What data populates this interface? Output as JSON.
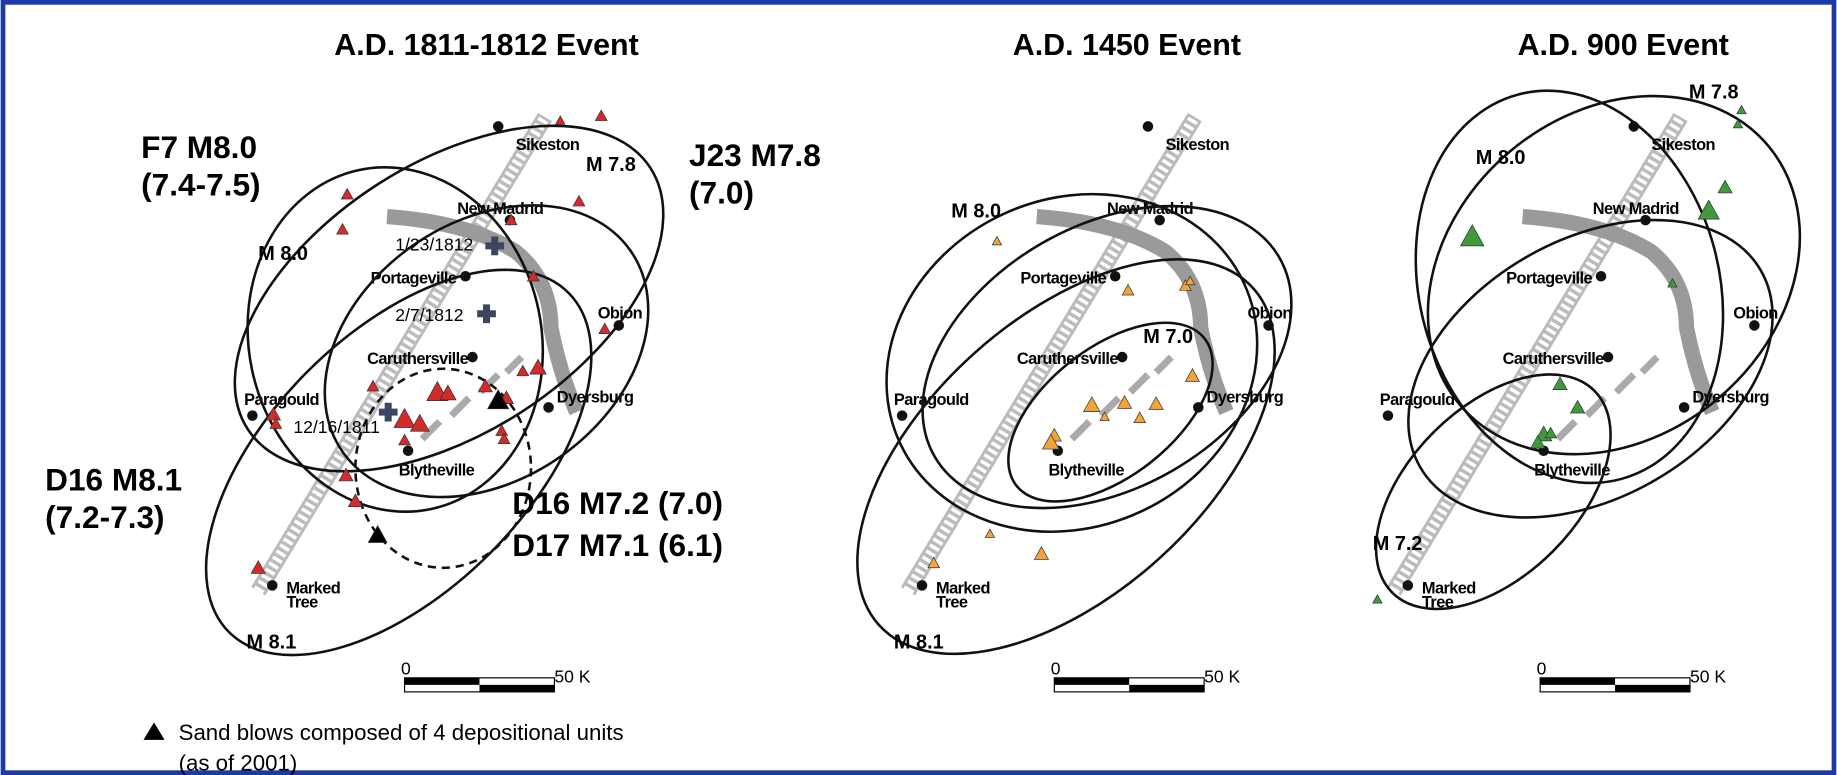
{
  "panels": [
    {
      "title": "A.D. 1811-1812 Event",
      "towns": [
        "Sikeston",
        "New Madrid",
        "Portageville",
        "Obion",
        "Caruthersville",
        "Paragould",
        "Dyersburg",
        "Blytheville"
      ],
      "marked_tree": [
        "Marked",
        "Tree"
      ],
      "magnitudes": [
        "M 7.8",
        "M 8.0",
        "M 8.1"
      ],
      "events": [
        "F7 M8.0",
        "(7.4-7.5)",
        "J23 M7.8",
        "(7.0)",
        "D16 M8.1",
        "(7.2-7.3)",
        "D16 M7.2 (7.0)",
        "D17 M7.1 (6.1)"
      ],
      "dates": [
        "1/23/1812",
        "2/7/1812",
        "12/16/1811"
      ],
      "scale": [
        "0",
        "50 K"
      ]
    },
    {
      "title": "A.D. 1450 Event",
      "towns": [
        "Sikeston",
        "New Madrid",
        "Portageville",
        "Obion",
        "Caruthersville",
        "Paragould",
        "Dyersburg",
        "Blytheville"
      ],
      "marked_tree": [
        "Marked",
        "Tree"
      ],
      "magnitudes": [
        "M 8.0",
        "M 7.0",
        "M 8.1"
      ],
      "scale": [
        "0",
        "50 K"
      ]
    },
    {
      "title": "A.D. 900 Event",
      "towns": [
        "Sikeston",
        "New Madrid",
        "Portageville",
        "Obion",
        "Caruthersville",
        "Paragould",
        "Dyersburg",
        "Blytheville"
      ],
      "marked_tree": [
        "Marked",
        "Tree"
      ],
      "magnitudes": [
        "M 7.8",
        "M 8.0",
        "M 7.2"
      ],
      "scale": [
        "0",
        "50 K"
      ]
    }
  ],
  "legend": [
    "Sand blows composed of 4 depositional units",
    "(as of 2001)"
  ]
}
